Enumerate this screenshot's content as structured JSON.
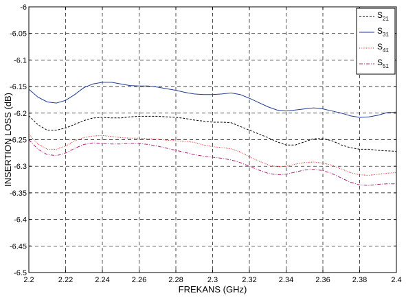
{
  "chart_data": {
    "type": "line",
    "title": "",
    "xlabel": "FREKANS (GHz)",
    "ylabel": "INSERTION LOSS (dB)",
    "xlim": [
      2.2,
      2.4
    ],
    "ylim": [
      -6.5,
      -6.0
    ],
    "xticks": [
      "2.2",
      "2.22",
      "2.24",
      "2.26",
      "2.28",
      "2.3",
      "2.32",
      "2.34",
      "2.36",
      "2.38",
      "2.4"
    ],
    "yticks": [
      "-6",
      "-6.05",
      "-6.1",
      "-6.15",
      "-6.2",
      "-6.25",
      "-6.3",
      "-6.35",
      "-6.4",
      "-6.45",
      "-6.5"
    ],
    "grid": true,
    "legend_position": "top-right",
    "x": [
      2.2,
      2.205,
      2.21,
      2.215,
      2.22,
      2.225,
      2.23,
      2.235,
      2.24,
      2.245,
      2.25,
      2.255,
      2.26,
      2.265,
      2.27,
      2.275,
      2.28,
      2.285,
      2.29,
      2.295,
      2.3,
      2.305,
      2.31,
      2.315,
      2.32,
      2.325,
      2.33,
      2.335,
      2.34,
      2.345,
      2.35,
      2.355,
      2.36,
      2.365,
      2.37,
      2.375,
      2.38,
      2.385,
      2.39,
      2.395,
      2.4
    ],
    "series": [
      {
        "name_base": "S",
        "name_sub": "21",
        "color": "#000000",
        "dash": "3,2",
        "values": [
          -6.205,
          -6.222,
          -6.232,
          -6.232,
          -6.228,
          -6.221,
          -6.214,
          -6.209,
          -6.208,
          -6.209,
          -6.209,
          -6.207,
          -6.206,
          -6.206,
          -6.206,
          -6.207,
          -6.208,
          -6.21,
          -6.213,
          -6.215,
          -6.217,
          -6.217,
          -6.218,
          -6.225,
          -6.232,
          -6.239,
          -6.246,
          -6.254,
          -6.26,
          -6.26,
          -6.254,
          -6.248,
          -6.248,
          -6.252,
          -6.26,
          -6.265,
          -6.268,
          -6.268,
          -6.27,
          -6.271,
          -6.272
        ]
      },
      {
        "name_base": "S",
        "name_sub": "31",
        "color": "#1f3a93",
        "dash": "",
        "values": [
          -6.155,
          -6.17,
          -6.179,
          -6.181,
          -6.176,
          -6.165,
          -6.152,
          -6.145,
          -6.142,
          -6.142,
          -6.145,
          -6.148,
          -6.149,
          -6.149,
          -6.151,
          -6.154,
          -6.157,
          -6.161,
          -6.164,
          -6.165,
          -6.165,
          -6.164,
          -6.162,
          -6.165,
          -6.172,
          -6.18,
          -6.188,
          -6.194,
          -6.196,
          -6.194,
          -6.192,
          -6.19,
          -6.192,
          -6.196,
          -6.2,
          -6.205,
          -6.208,
          -6.207,
          -6.204,
          -6.199,
          -6.198
        ]
      },
      {
        "name_base": "S",
        "name_sub": "41",
        "color": "#e02020",
        "dash": "1,1.5",
        "values": [
          -6.24,
          -6.258,
          -6.268,
          -6.268,
          -6.262,
          -6.252,
          -6.246,
          -6.243,
          -6.242,
          -6.244,
          -6.246,
          -6.247,
          -6.247,
          -6.248,
          -6.249,
          -6.251,
          -6.252,
          -6.253,
          -6.255,
          -6.26,
          -6.263,
          -6.265,
          -6.267,
          -6.273,
          -6.282,
          -6.29,
          -6.297,
          -6.301,
          -6.3,
          -6.296,
          -6.293,
          -6.292,
          -6.294,
          -6.298,
          -6.305,
          -6.312,
          -6.316,
          -6.317,
          -6.315,
          -6.313,
          -6.312
        ]
      },
      {
        "name_base": "S",
        "name_sub": "51",
        "color": "#b0207a",
        "dash": "5,2,1,2",
        "values": [
          -6.25,
          -6.268,
          -6.278,
          -6.28,
          -6.275,
          -6.266,
          -6.259,
          -6.256,
          -6.257,
          -6.258,
          -6.258,
          -6.257,
          -6.257,
          -6.259,
          -6.262,
          -6.266,
          -6.27,
          -6.274,
          -6.278,
          -6.281,
          -6.283,
          -6.285,
          -6.288,
          -6.293,
          -6.3,
          -6.307,
          -6.313,
          -6.316,
          -6.315,
          -6.311,
          -6.307,
          -6.306,
          -6.308,
          -6.314,
          -6.322,
          -6.33,
          -6.335,
          -6.336,
          -6.334,
          -6.333,
          -6.333
        ]
      }
    ]
  }
}
